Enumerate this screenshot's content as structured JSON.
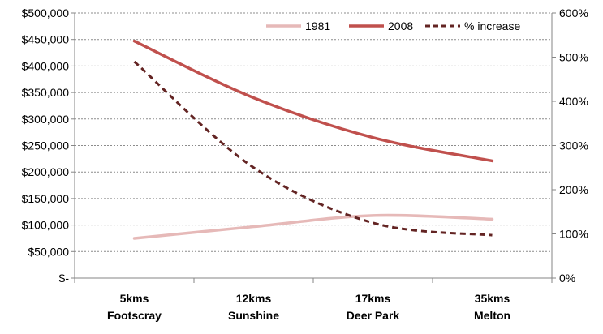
{
  "chart_data": {
    "type": "line",
    "title": "",
    "categories": [
      {
        "line1": "5kms",
        "line2": "Footscray"
      },
      {
        "line1": "12kms",
        "line2": "Sunshine"
      },
      {
        "line1": "17kms",
        "line2": "Deer Park"
      },
      {
        "line1": "35kms",
        "line2": "Melton"
      }
    ],
    "series": [
      {
        "name": "1981",
        "axis": "left",
        "color": "#e6b9b8",
        "dash": "none",
        "values": [
          75000,
          97000,
          118000,
          111000
        ]
      },
      {
        "name": "2008",
        "axis": "left",
        "color": "#c0504d",
        "dash": "none",
        "values": [
          447000,
          340000,
          265000,
          221000
        ]
      },
      {
        "name": "% increase",
        "axis": "right",
        "color": "#632423",
        "dash": "dashed",
        "values": [
          490,
          250,
          125,
          97
        ]
      }
    ],
    "left_axis": {
      "min": 0,
      "max": 500000,
      "step": 50000,
      "tick_labels": [
        "$-",
        "$50,000",
        "$100,000",
        "$150,000",
        "$200,000",
        "$250,000",
        "$300,000",
        "$350,000",
        "$400,000",
        "$450,000",
        "$500,000"
      ]
    },
    "right_axis": {
      "min": 0,
      "max": 600,
      "step": 100,
      "tick_labels": [
        "0%",
        "100%",
        "200%",
        "300%",
        "400%",
        "500%",
        "600%"
      ]
    },
    "grid": true,
    "legend_position": "top-right",
    "xlabel": "",
    "ylabel": ""
  }
}
